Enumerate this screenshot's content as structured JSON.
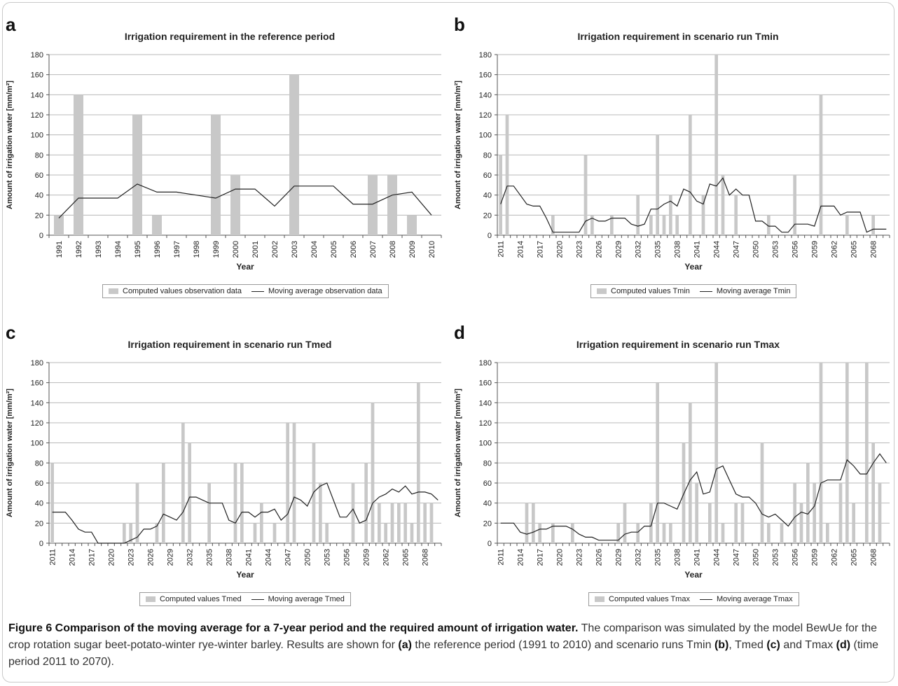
{
  "chart_data": [
    {
      "letter": "a",
      "type": "bar",
      "title": "Irrigation requirement in the reference period",
      "xlabel": "Year",
      "ylabel": "Amount of irrigation water [mm/m²]",
      "ylim": [
        0,
        180
      ],
      "yticks": [
        0,
        20,
        40,
        60,
        80,
        100,
        120,
        140,
        160,
        180
      ],
      "x_start": 1991,
      "x_end": 2010,
      "x_tick_labels": [
        "1991",
        "1992",
        "1993",
        "1994",
        "1995",
        "1996",
        "1997",
        "1998",
        "1999",
        "2000",
        "2001",
        "2002",
        "2003",
        "2004",
        "2005",
        "2006",
        "2007",
        "2008",
        "2009",
        "2010"
      ],
      "grid": "horizontal",
      "legend_position": "bottom",
      "series": [
        {
          "name": "Computed values observation data",
          "kind": "bar",
          "x": [
            1991,
            1992,
            1995,
            1996,
            1999,
            2000,
            2003,
            2007,
            2008,
            2009
          ],
          "y": [
            20,
            140,
            120,
            20,
            120,
            60,
            160,
            60,
            60,
            20
          ]
        },
        {
          "name": "Moving average observation data",
          "kind": "line",
          "x": [
            1991,
            1992,
            1993,
            1994,
            1995,
            1996,
            1997,
            1998,
            1999,
            2000,
            2001,
            2002,
            2003,
            2004,
            2005,
            2006,
            2007,
            2008,
            2009,
            2010
          ],
          "y": [
            17,
            37,
            37,
            37,
            51,
            43,
            43,
            40,
            37,
            46,
            46,
            29,
            49,
            49,
            49,
            31,
            31,
            40,
            43,
            20
          ]
        }
      ]
    },
    {
      "letter": "b",
      "type": "bar",
      "title": "Irrigation requirement in scenario run Tmin",
      "xlabel": "Year",
      "ylabel": "Amount of irrigation water [mm/m²]",
      "ylim": [
        0,
        180
      ],
      "yticks": [
        0,
        20,
        40,
        60,
        80,
        100,
        120,
        140,
        160,
        180
      ],
      "x_start": 2011,
      "x_end": 2070,
      "x_tick_labels": [
        "2011",
        "2014",
        "2017",
        "2020",
        "2023",
        "2026",
        "2029",
        "2032",
        "2035",
        "2038",
        "2041",
        "2044",
        "2047",
        "2050",
        "2053",
        "2056",
        "2059",
        "2062",
        "2065",
        "2068"
      ],
      "grid": "horizontal",
      "legend_position": "bottom",
      "series": [
        {
          "name": "Computed values Tmin",
          "kind": "bar",
          "x": [
            2011,
            2012,
            2019,
            2024,
            2025,
            2028,
            2032,
            2034,
            2035,
            2036,
            2037,
            2038,
            2040,
            2042,
            2044,
            2045,
            2047,
            2052,
            2056,
            2060,
            2064,
            2068
          ],
          "y": [
            80,
            120,
            20,
            80,
            20,
            20,
            40,
            20,
            100,
            20,
            40,
            20,
            120,
            40,
            180,
            60,
            40,
            20,
            60,
            140,
            20,
            20
          ]
        },
        {
          "name": "Moving average Tmin",
          "kind": "line",
          "x": [
            2011,
            2012,
            2013,
            2014,
            2015,
            2016,
            2017,
            2018,
            2019,
            2020,
            2021,
            2022,
            2023,
            2024,
            2025,
            2026,
            2027,
            2028,
            2029,
            2030,
            2031,
            2032,
            2033,
            2034,
            2035,
            2036,
            2037,
            2038,
            2039,
            2040,
            2041,
            2042,
            2043,
            2044,
            2045,
            2046,
            2047,
            2048,
            2049,
            2050,
            2051,
            2052,
            2053,
            2054,
            2055,
            2056,
            2057,
            2058,
            2059,
            2060,
            2061,
            2062,
            2063,
            2064,
            2065,
            2066,
            2067,
            2068,
            2069,
            2070
          ],
          "y": [
            31,
            49,
            49,
            40,
            31,
            29,
            29,
            17,
            3,
            3,
            3,
            3,
            3,
            14,
            17,
            14,
            14,
            17,
            17,
            17,
            11,
            9,
            11,
            26,
            26,
            31,
            34,
            29,
            46,
            43,
            34,
            31,
            51,
            49,
            57,
            40,
            46,
            40,
            40,
            14,
            14,
            9,
            9,
            3,
            3,
            11,
            11,
            11,
            9,
            29,
            29,
            29,
            20,
            23,
            23,
            23,
            3,
            6,
            6,
            6
          ]
        }
      ]
    },
    {
      "letter": "c",
      "type": "bar",
      "title": "Irrigation requirement in scenario run Tmed",
      "xlabel": "Year",
      "ylabel": "Amount of irrigation water [mm/m²]",
      "ylim": [
        0,
        180
      ],
      "yticks": [
        0,
        20,
        40,
        60,
        80,
        100,
        120,
        140,
        160,
        180
      ],
      "x_start": 2011,
      "x_end": 2070,
      "x_tick_labels": [
        "2011",
        "2014",
        "2017",
        "2020",
        "2023",
        "2026",
        "2029",
        "2032",
        "2035",
        "2038",
        "2041",
        "2044",
        "2047",
        "2050",
        "2053",
        "2056",
        "2059",
        "2062",
        "2065",
        "2068"
      ],
      "grid": "horizontal",
      "legend_position": "bottom",
      "series": [
        {
          "name": "Computed values Tmed",
          "kind": "bar",
          "x": [
            2011,
            2022,
            2023,
            2024,
            2027,
            2028,
            2031,
            2032,
            2035,
            2039,
            2040,
            2042,
            2043,
            2045,
            2047,
            2048,
            2051,
            2052,
            2053,
            2057,
            2059,
            2060,
            2061,
            2062,
            2063,
            2064,
            2065,
            2066,
            2067,
            2068,
            2069
          ],
          "y": [
            80,
            20,
            20,
            60,
            20,
            80,
            120,
            100,
            60,
            80,
            80,
            20,
            40,
            20,
            120,
            120,
            100,
            60,
            20,
            60,
            80,
            140,
            40,
            20,
            40,
            40,
            40,
            20,
            160,
            40,
            40
          ]
        },
        {
          "name": "Moving average Tmed",
          "kind": "line",
          "x": [
            2011,
            2012,
            2013,
            2014,
            2015,
            2016,
            2017,
            2018,
            2019,
            2020,
            2021,
            2022,
            2023,
            2024,
            2025,
            2026,
            2027,
            2028,
            2029,
            2030,
            2031,
            2032,
            2033,
            2034,
            2035,
            2036,
            2037,
            2038,
            2039,
            2040,
            2041,
            2042,
            2043,
            2044,
            2045,
            2046,
            2047,
            2048,
            2049,
            2050,
            2051,
            2052,
            2053,
            2054,
            2055,
            2056,
            2057,
            2058,
            2059,
            2060,
            2061,
            2062,
            2063,
            2064,
            2065,
            2066,
            2067,
            2068,
            2069,
            2070
          ],
          "y": [
            31,
            31,
            31,
            23,
            14,
            11,
            11,
            0,
            0,
            0,
            0,
            0,
            3,
            6,
            14,
            14,
            17,
            29,
            26,
            23,
            31,
            46,
            46,
            43,
            40,
            40,
            40,
            23,
            20,
            31,
            31,
            26,
            31,
            31,
            34,
            23,
            29,
            46,
            43,
            37,
            51,
            57,
            60,
            43,
            26,
            26,
            34,
            20,
            23,
            40,
            46,
            49,
            54,
            51,
            57,
            49,
            51,
            51,
            49,
            43
          ]
        }
      ]
    },
    {
      "letter": "d",
      "type": "bar",
      "title": "Irrigation requirement in scenario run Tmax",
      "xlabel": "Year",
      "ylabel": "Amount of irrigation water [mm/m²]",
      "ylim": [
        0,
        180
      ],
      "yticks": [
        0,
        20,
        40,
        60,
        80,
        100,
        120,
        140,
        160,
        180
      ],
      "x_start": 2011,
      "x_end": 2070,
      "x_tick_labels": [
        "2011",
        "2014",
        "2017",
        "2020",
        "2023",
        "2026",
        "2029",
        "2032",
        "2035",
        "2038",
        "2041",
        "2044",
        "2047",
        "2050",
        "2053",
        "2056",
        "2059",
        "2062",
        "2065",
        "2068"
      ],
      "grid": "horizontal",
      "legend_position": "bottom",
      "series": [
        {
          "name": "Computed values Tmax",
          "kind": "bar",
          "x": [
            2015,
            2016,
            2017,
            2019,
            2022,
            2029,
            2030,
            2032,
            2034,
            2035,
            2036,
            2037,
            2039,
            2040,
            2041,
            2043,
            2044,
            2045,
            2047,
            2048,
            2051,
            2052,
            2054,
            2056,
            2057,
            2058,
            2059,
            2060,
            2061,
            2063,
            2064,
            2065,
            2067,
            2068,
            2069
          ],
          "y": [
            40,
            40,
            20,
            20,
            20,
            20,
            40,
            20,
            40,
            160,
            20,
            20,
            100,
            140,
            60,
            40,
            180,
            20,
            40,
            40,
            100,
            20,
            20,
            60,
            40,
            80,
            60,
            180,
            20,
            60,
            180,
            40,
            180,
            100,
            60
          ]
        },
        {
          "name": "Moving average Tmax",
          "kind": "line",
          "x": [
            2011,
            2012,
            2013,
            2014,
            2015,
            2016,
            2017,
            2018,
            2019,
            2020,
            2021,
            2022,
            2023,
            2024,
            2025,
            2026,
            2027,
            2028,
            2029,
            2030,
            2031,
            2032,
            2033,
            2034,
            2035,
            2036,
            2037,
            2038,
            2039,
            2040,
            2041,
            2042,
            2043,
            2044,
            2045,
            2046,
            2047,
            2048,
            2049,
            2050,
            2051,
            2052,
            2053,
            2054,
            2055,
            2056,
            2057,
            2058,
            2059,
            2060,
            2061,
            2062,
            2063,
            2064,
            2065,
            2066,
            2067,
            2068,
            2069,
            2070
          ],
          "y": [
            20,
            20,
            20,
            11,
            9,
            11,
            14,
            14,
            17,
            17,
            17,
            14,
            9,
            6,
            6,
            3,
            3,
            3,
            3,
            9,
            11,
            11,
            17,
            17,
            40,
            40,
            37,
            34,
            49,
            63,
            71,
            49,
            51,
            74,
            77,
            63,
            49,
            46,
            46,
            40,
            29,
            26,
            29,
            23,
            17,
            26,
            31,
            29,
            37,
            60,
            63,
            63,
            63,
            83,
            77,
            69,
            69,
            80,
            89,
            80
          ]
        }
      ]
    }
  ],
  "caption": {
    "title": "Figure 6 Comparison of the moving average for a 7-year period and the required amount of irrigation water.",
    "text_1": " The comparison was simulated by the model BewUe for the crop rotation sugar beet-potato-winter rye-winter barley. Results are shown for ",
    "ref_a": "(a)",
    "text_2": " the reference period (1991 to 2010) and scenario runs Tmin ",
    "ref_b": "(b)",
    "text_3": ", Tmed ",
    "ref_c": "(c)",
    "text_4": " and Tmax ",
    "ref_d": "(d)",
    "text_5": " (time period 2011 to 2070)."
  },
  "colors": {
    "bar": "#c8c8c8",
    "line": "#222222",
    "grid": "#b8b8b8",
    "axis": "#555555"
  }
}
